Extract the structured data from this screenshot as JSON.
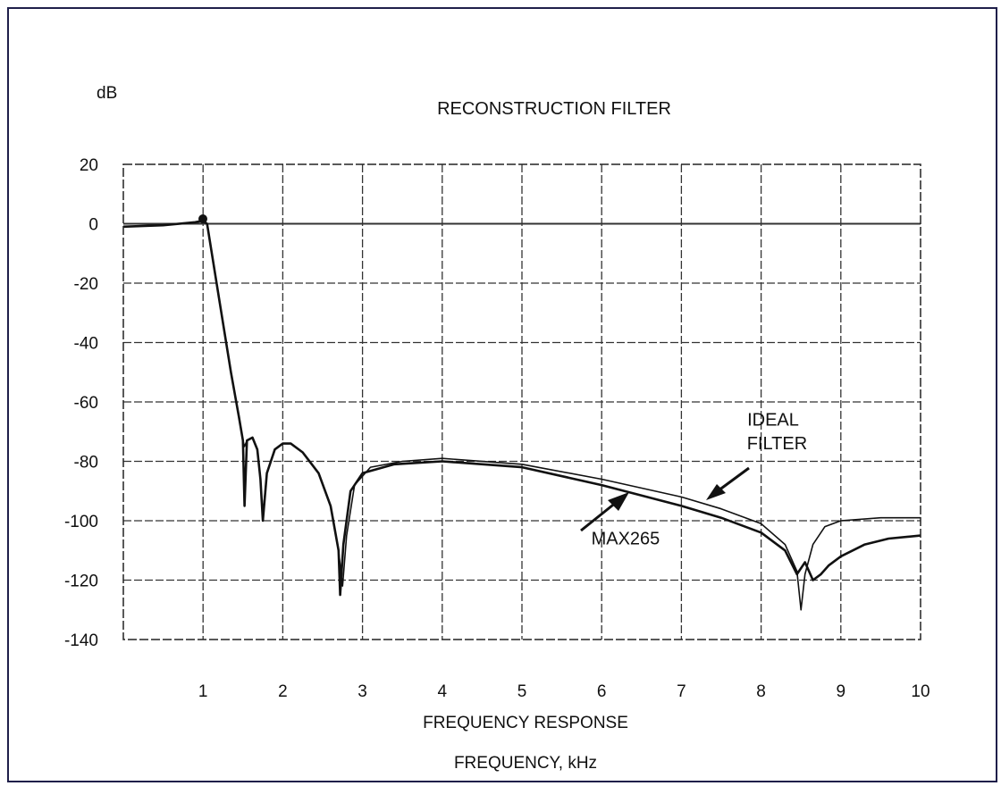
{
  "chart_data": {
    "type": "line",
    "title": "RECONSTRUCTION FILTER",
    "ylabel": "dB",
    "xlabel": "FREQUENCY RESPONSE",
    "xlabel2": "FREQUENCY, kHz",
    "xlim": [
      0,
      10
    ],
    "ylim": [
      -140,
      20
    ],
    "xticks": [
      1,
      2,
      3,
      4,
      5,
      6,
      7,
      8,
      9,
      10
    ],
    "yticks": [
      20,
      0,
      -20,
      -40,
      -60,
      -80,
      -100,
      -120,
      -140
    ],
    "grid": true,
    "series": [
      {
        "name": "IDEAL FILTER",
        "x": [
          0,
          0.5,
          0.9,
          1.0,
          1.05,
          1.2,
          1.35,
          1.45,
          1.5,
          1.52,
          1.55,
          1.62,
          1.68,
          1.72,
          1.75,
          1.8,
          1.9,
          2.0,
          2.1,
          2.25,
          2.45,
          2.6,
          2.7,
          2.75,
          2.8,
          2.9,
          3.1,
          3.5,
          4.0,
          5.0,
          6.0,
          7.0,
          7.5,
          8.0,
          8.3,
          8.45,
          8.5,
          8.55,
          8.65,
          8.8,
          9.0,
          9.5,
          10.0
        ],
        "values": [
          -1,
          -0.5,
          0.5,
          1,
          0,
          -25,
          -50,
          -65,
          -73,
          -75,
          -73,
          -72,
          -76,
          -86,
          -98,
          -84,
          -76,
          -74,
          -74,
          -77,
          -84,
          -95,
          -110,
          -122,
          -105,
          -88,
          -82,
          -80,
          -79,
          -81,
          -86,
          -92,
          -96,
          -101,
          -108,
          -117,
          -130,
          -118,
          -108,
          -102,
          -100,
          -99,
          -99
        ]
      },
      {
        "name": "MAX265",
        "x": [
          0,
          0.5,
          0.9,
          1.0,
          1.05,
          1.2,
          1.35,
          1.45,
          1.5,
          1.52,
          1.55,
          1.62,
          1.68,
          1.72,
          1.75,
          1.8,
          1.9,
          2.0,
          2.1,
          2.25,
          2.45,
          2.6,
          2.7,
          2.72,
          2.76,
          2.85,
          3.0,
          3.4,
          4.0,
          5.0,
          6.0,
          7.0,
          7.5,
          8.0,
          8.3,
          8.45,
          8.55,
          8.65,
          8.75,
          8.85,
          9.0,
          9.3,
          9.6,
          10.0
        ],
        "values": [
          -1,
          -0.5,
          0.5,
          1,
          0,
          -25,
          -50,
          -65,
          -73,
          -95,
          -73,
          -72,
          -76,
          -86,
          -100,
          -84,
          -76,
          -74,
          -74,
          -77,
          -84,
          -95,
          -110,
          -125,
          -108,
          -90,
          -84,
          -81,
          -80,
          -82,
          -88,
          -95,
          -99,
          -104,
          -110,
          -118,
          -114,
          -120,
          -118,
          -115,
          -112,
          -108,
          -106,
          -105
        ]
      }
    ],
    "annotations": [
      {
        "text": "IDEAL",
        "x": 8.15,
        "y": -68
      },
      {
        "text": "FILTER",
        "x": 8.2,
        "y": -76
      },
      {
        "text": "MAX265",
        "x": 6.3,
        "y": -108
      }
    ]
  }
}
